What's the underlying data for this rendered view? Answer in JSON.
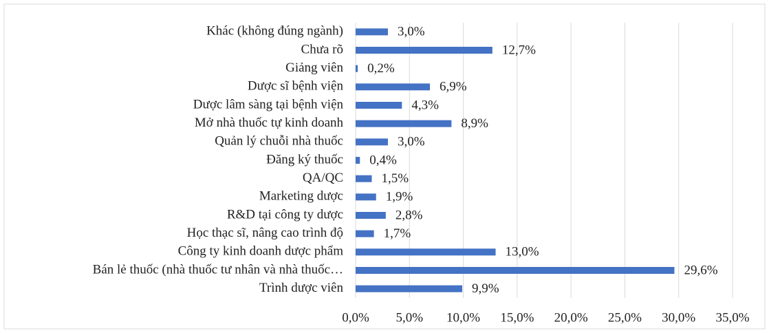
{
  "chart_data": {
    "type": "barh",
    "categories": [
      "Khác (không đúng ngành)",
      "Chưa rõ",
      "Giảng viên",
      "Dược sĩ bệnh viện",
      "Dược lâm sàng tại bệnh viện",
      "Mở nhà thuốc tự kinh doanh",
      "Quản lý chuỗi nhà thuốc",
      "Đăng ký thuốc",
      "QA/QC",
      "Marketing dược",
      "R&D tại công ty dược",
      "Học thạc sĩ, nâng cao trình độ",
      "Công ty kinh doanh dược phẩm",
      "Bán lẻ thuốc (nhà thuốc tư nhân và nhà thuốc…",
      "Trình dược viên"
    ],
    "values": [
      3.0,
      12.7,
      0.2,
      6.9,
      4.3,
      8.9,
      3.0,
      0.4,
      1.5,
      1.9,
      2.8,
      1.7,
      13.0,
      29.6,
      9.9
    ],
    "value_labels": [
      "3,0%",
      "12,7%",
      "0,2%",
      "6,9%",
      "4,3%",
      "8,9%",
      "3,0%",
      "0,4%",
      "1,5%",
      "1,9%",
      "2,8%",
      "1,7%",
      "13,0%",
      "29,6%",
      "9,9%"
    ],
    "color": "#4472c4",
    "xlim": [
      0,
      35
    ],
    "xticks": [
      {
        "value": 0,
        "label": "0,0%"
      },
      {
        "value": 5,
        "label": "5,0%"
      },
      {
        "value": 10,
        "label": "10,0%"
      },
      {
        "value": 15,
        "label": "15,0%"
      },
      {
        "value": 20,
        "label": "20,0%"
      },
      {
        "value": 25,
        "label": "25,0%"
      },
      {
        "value": 30,
        "label": "30,0%"
      },
      {
        "value": 35,
        "label": "35,0%"
      }
    ],
    "grid": true
  }
}
